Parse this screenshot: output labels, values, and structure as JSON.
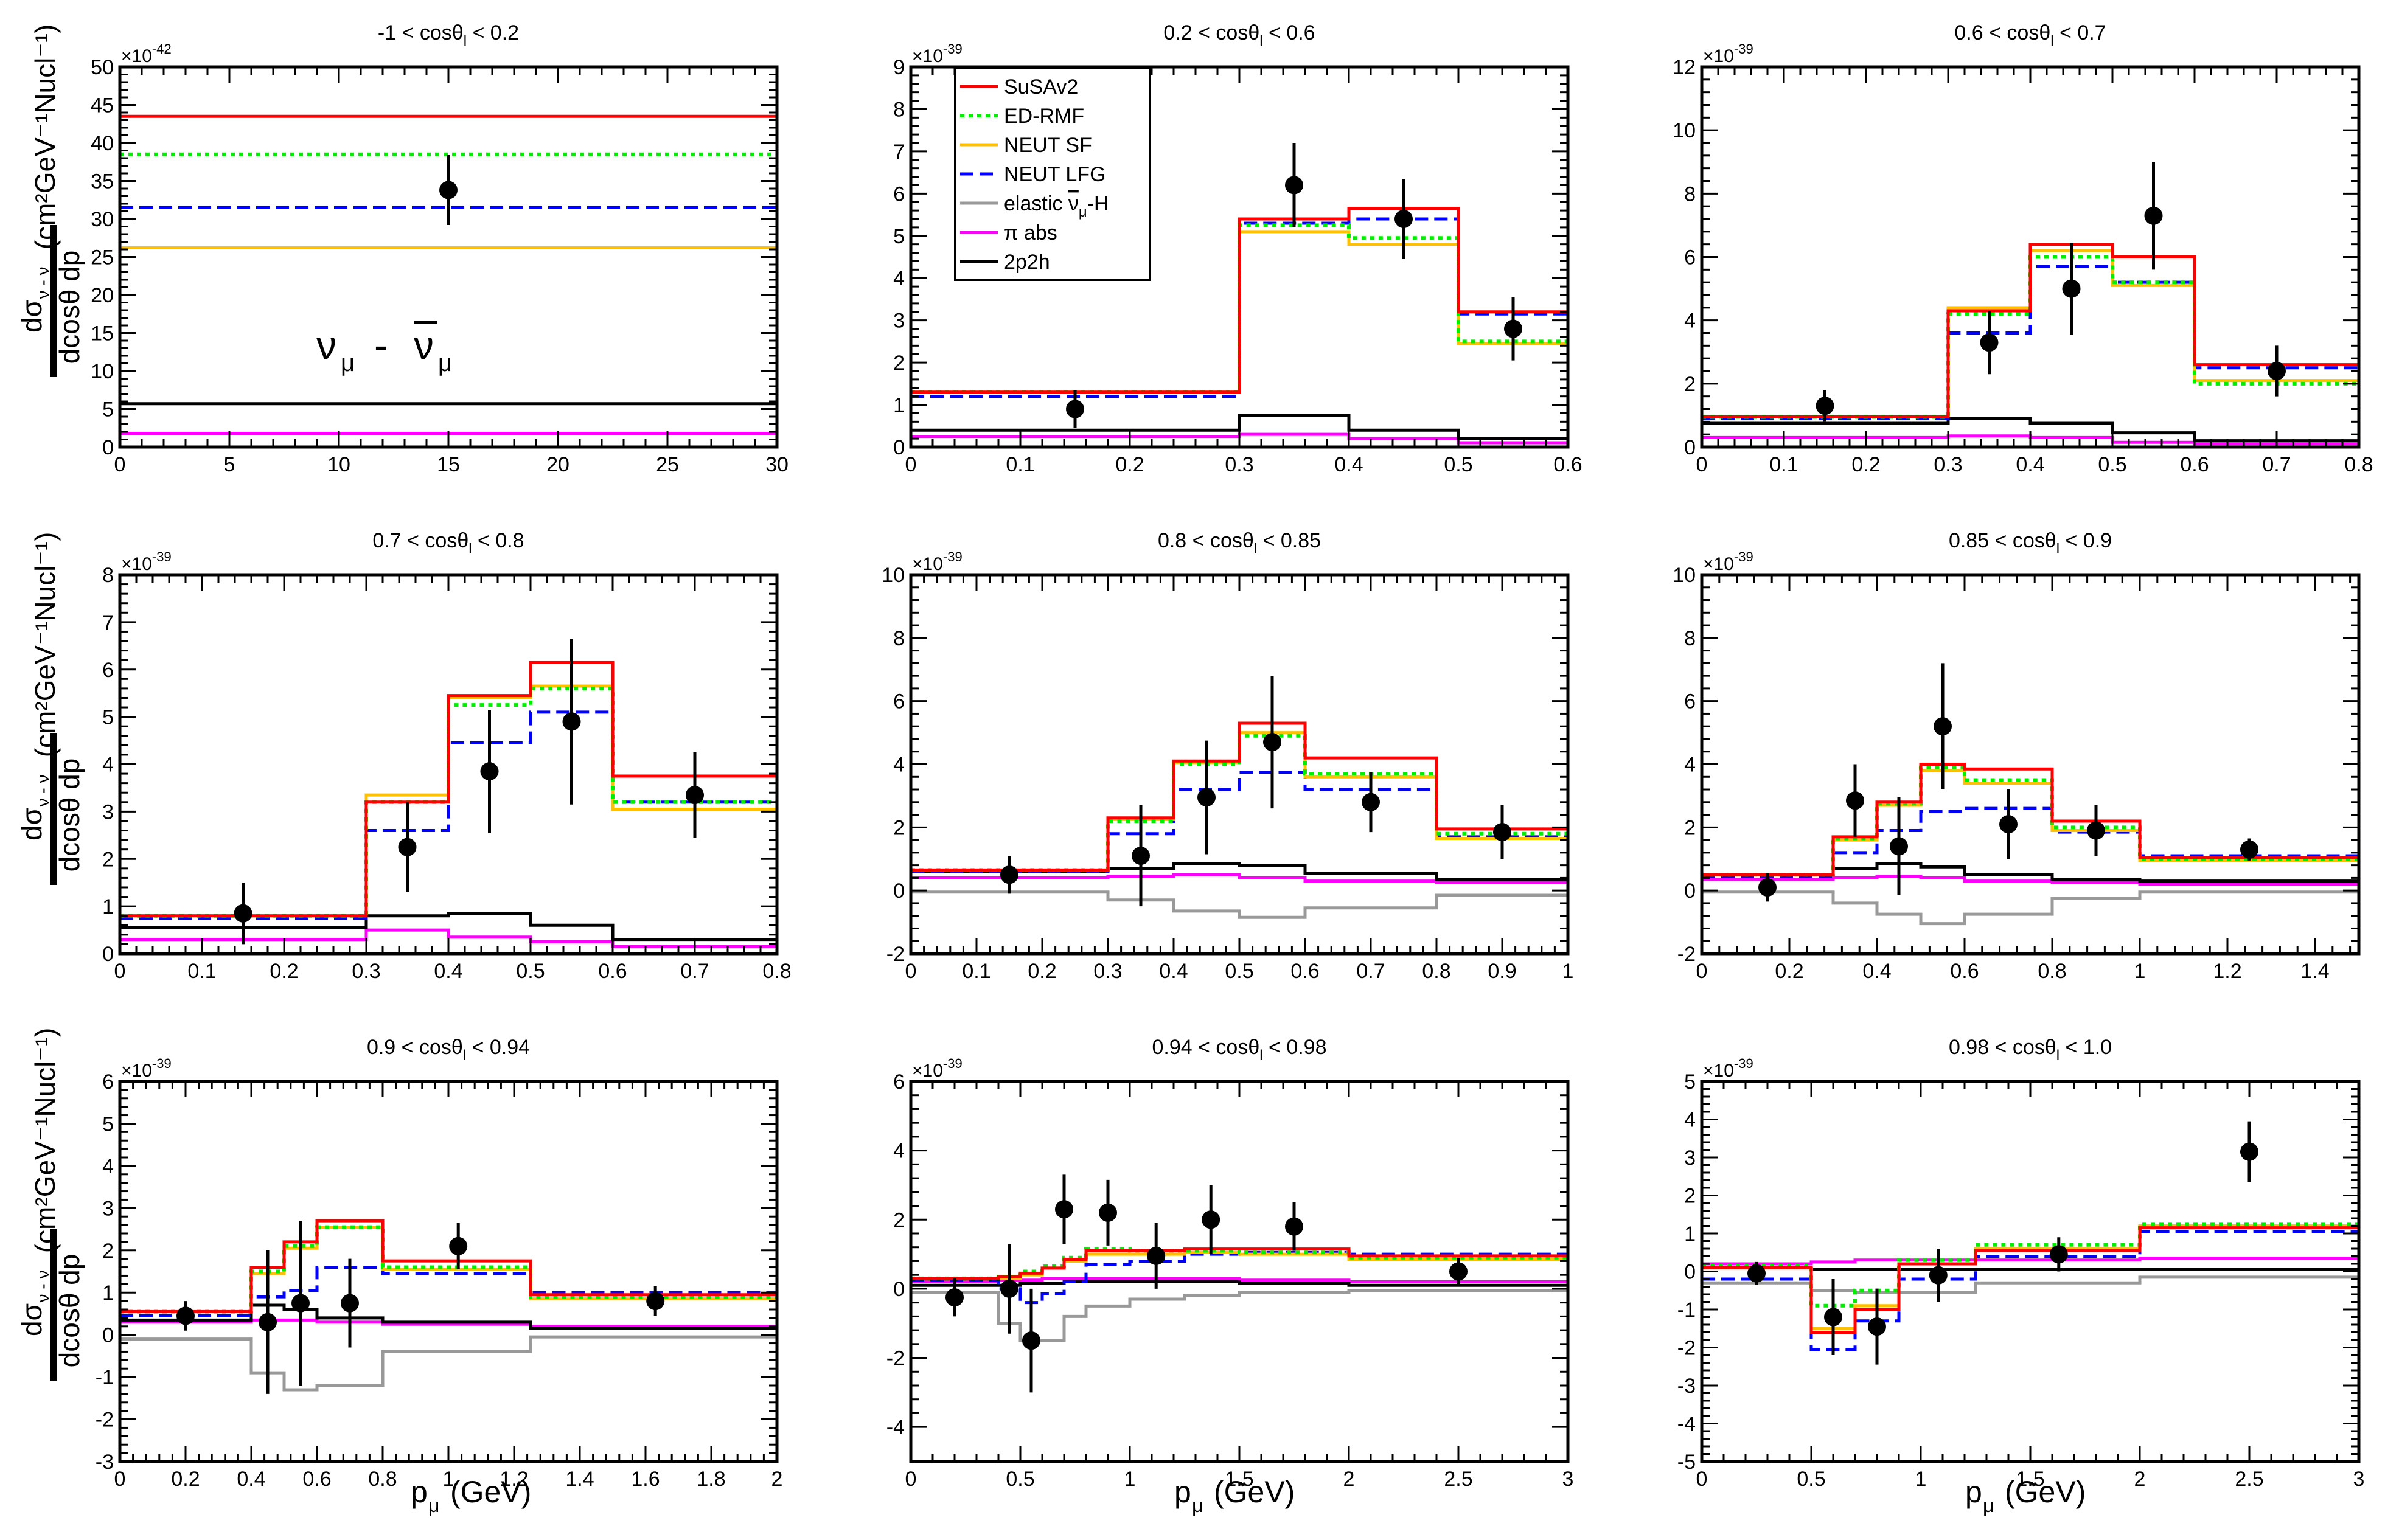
{
  "colors": {
    "SuSAv2": "#ff0000",
    "ED-RMF": "#00ee00",
    "NEUT SF": "#ffc000",
    "NEUT LFG": "#0000ff",
    "elastic": "#999999",
    "pi_abs": "#ff00ff",
    "2p2h": "#000000",
    "data": "#000000"
  },
  "labels": {
    "ylabel_main": "(cm²GeV⁻¹Nucl⁻¹)",
    "ylabel_frac_num": "dσ",
    "ylabel_frac_sub": "ν - ν",
    "ylabel_frac_den": "dcosθ dp",
    "ylabel_den_sub1": "l",
    "ylabel_den_sub2": "μ",
    "xlabel": "p",
    "xlabel_sub": "μ",
    "xlabel_unit": "(GeV)",
    "process_nu": "ν",
    "process_nu_sub": "μ",
    "process_dash": "-",
    "process_nubar": "ν",
    "process_nubar_sub": "μ"
  },
  "legend": [
    {
      "key": "SuSAv2",
      "label": "SuSAv2"
    },
    {
      "key": "ED-RMF",
      "label": "ED-RMF"
    },
    {
      "key": "NEUT SF",
      "label": "NEUT SF"
    },
    {
      "key": "NEUT LFG",
      "label": "NEUT LFG"
    },
    {
      "key": "elastic",
      "label": "elastic ν̄μ-H",
      "prefix": "elastic ",
      "nu": "ν",
      "sub": "μ",
      "suffix": "-H"
    },
    {
      "key": "pi_abs",
      "label": "π abs"
    },
    {
      "key": "2p2h",
      "label": "2p2h"
    }
  ],
  "chart_data": [
    {
      "type": "histogram",
      "title": "-1 < cosθl < 0.2",
      "title_pre": "-1 < cosθ",
      "title_sub": "l",
      "title_post": " < 0.2",
      "exponent": "×10⁻⁴²",
      "exp_base": "×10",
      "exp_pow": "-42",
      "xlim": [
        0,
        30
      ],
      "ylim": [
        0,
        50
      ],
      "xticks": [
        0,
        5,
        10,
        15,
        20,
        25,
        30
      ],
      "yticks": [
        0,
        5,
        10,
        15,
        20,
        25,
        30,
        35,
        40,
        45,
        50
      ],
      "edges": [
        0,
        30
      ],
      "series": {
        "SuSAv2": [
          43.5
        ],
        "ED-RMF": [
          38.5
        ],
        "NEUT SF": [
          26.2
        ],
        "NEUT LFG": [
          31.5
        ],
        "2p2h": [
          5.7
        ],
        "pi_abs": [
          1.8
        ]
      },
      "data": [
        {
          "x": 15,
          "y": 33.8,
          "yerr": 4.6
        }
      ]
    },
    {
      "type": "histogram",
      "title": "0.2 < cosθl < 0.6",
      "title_pre": "0.2 < cosθ",
      "title_sub": "l",
      "title_post": " < 0.6",
      "exponent": "×10⁻³⁹",
      "exp_base": "×10",
      "exp_pow": "-39",
      "xlim": [
        0,
        0.6
      ],
      "ylim": [
        0,
        9
      ],
      "xticks": [
        0,
        0.1,
        0.2,
        0.3,
        0.4,
        0.5,
        0.6
      ],
      "yticks": [
        0,
        1,
        2,
        3,
        4,
        5,
        6,
        7,
        8,
        9
      ],
      "edges": [
        0,
        0.3,
        0.4,
        0.5,
        0.6
      ],
      "series": {
        "SuSAv2": [
          1.3,
          5.4,
          5.65,
          3.2
        ],
        "ED-RMF": [
          1.3,
          5.25,
          4.95,
          2.5
        ],
        "NEUT SF": [
          1.3,
          5.1,
          4.8,
          2.45
        ],
        "NEUT LFG": [
          1.2,
          5.3,
          5.4,
          3.15
        ],
        "2p2h": [
          0.4,
          0.75,
          0.4,
          0.2
        ],
        "pi_abs": [
          0.25,
          0.3,
          0.2,
          0.1
        ]
      },
      "data": [
        {
          "x": 0.15,
          "y": 0.9,
          "yerr": 0.45
        },
        {
          "x": 0.35,
          "y": 6.2,
          "yerr": 1.0
        },
        {
          "x": 0.45,
          "y": 5.4,
          "yerr": 0.95
        },
        {
          "x": 0.55,
          "y": 2.8,
          "yerr": 0.75
        }
      ]
    },
    {
      "type": "histogram",
      "title": "0.6 < cosθl < 0.7",
      "title_pre": "0.6 < cosθ",
      "title_sub": "l",
      "title_post": " < 0.7",
      "exponent": "×10⁻³⁹",
      "exp_base": "×10",
      "exp_pow": "-39",
      "xlim": [
        0,
        0.8
      ],
      "ylim": [
        0,
        12
      ],
      "xticks": [
        0,
        0.1,
        0.2,
        0.3,
        0.4,
        0.5,
        0.6,
        0.7,
        0.8
      ],
      "yticks": [
        0,
        2,
        4,
        6,
        8,
        10,
        12
      ],
      "edges": [
        0,
        0.3,
        0.4,
        0.5,
        0.6,
        0.8
      ],
      "series": {
        "SuSAv2": [
          0.95,
          4.3,
          6.4,
          6.0,
          2.6
        ],
        "ED-RMF": [
          0.95,
          4.2,
          6.0,
          5.2,
          2.0
        ],
        "NEUT SF": [
          0.95,
          4.4,
          6.2,
          5.1,
          2.1
        ],
        "NEUT LFG": [
          0.9,
          3.6,
          5.7,
          5.2,
          2.5
        ],
        "2p2h": [
          0.75,
          0.9,
          0.75,
          0.45,
          0.2
        ],
        "pi_abs": [
          0.3,
          0.35,
          0.3,
          0.15,
          0.1
        ]
      },
      "data": [
        {
          "x": 0.15,
          "y": 1.3,
          "yerr": 0.5
        },
        {
          "x": 0.35,
          "y": 3.3,
          "yerr": 1.0
        },
        {
          "x": 0.45,
          "y": 5.0,
          "yerr": 1.45
        },
        {
          "x": 0.55,
          "y": 7.3,
          "yerr": 1.7
        },
        {
          "x": 0.7,
          "y": 2.4,
          "yerr": 0.8
        }
      ]
    },
    {
      "type": "histogram",
      "title": "0.7 < cosθl < 0.8",
      "title_pre": "0.7 < cosθ",
      "title_sub": "l",
      "title_post": " < 0.8",
      "exponent": "×10⁻³⁹",
      "exp_base": "×10",
      "exp_pow": "-39",
      "xlim": [
        0,
        0.8
      ],
      "ylim": [
        0,
        8
      ],
      "xticks": [
        0,
        0.1,
        0.2,
        0.3,
        0.4,
        0.5,
        0.6,
        0.7,
        0.8
      ],
      "yticks": [
        0,
        1,
        2,
        3,
        4,
        5,
        6,
        7,
        8
      ],
      "edges": [
        0,
        0.3,
        0.4,
        0.5,
        0.6,
        0.8
      ],
      "series": {
        "SuSAv2": [
          0.8,
          3.2,
          5.45,
          6.15,
          3.75
        ],
        "ED-RMF": [
          0.8,
          3.2,
          5.25,
          5.6,
          3.2
        ],
        "NEUT SF": [
          0.8,
          3.35,
          5.4,
          5.65,
          3.05
        ],
        "NEUT LFG": [
          0.75,
          2.6,
          4.45,
          5.1,
          3.2
        ],
        "2p2h": [
          0.55,
          0.8,
          0.85,
          0.6,
          0.3
        ],
        "pi_abs": [
          0.3,
          0.5,
          0.35,
          0.25,
          0.15
        ]
      },
      "data": [
        {
          "x": 0.15,
          "y": 0.85,
          "yerr": 0.65
        },
        {
          "x": 0.35,
          "y": 2.25,
          "yerr": 0.95
        },
        {
          "x": 0.45,
          "y": 3.85,
          "yerr": 1.3
        },
        {
          "x": 0.55,
          "y": 4.9,
          "yerr": 1.75
        },
        {
          "x": 0.7,
          "y": 3.35,
          "yerr": 0.9
        }
      ]
    },
    {
      "type": "histogram",
      "title": "0.8 < cosθl < 0.85",
      "title_pre": "0.8 < cosθ",
      "title_sub": "l",
      "title_post": " < 0.85",
      "exponent": "×10⁻³⁹",
      "exp_base": "×10",
      "exp_pow": "-39",
      "xlim": [
        0,
        1
      ],
      "ylim": [
        -2,
        10
      ],
      "xticks": [
        0,
        0.1,
        0.2,
        0.3,
        0.4,
        0.5,
        0.6,
        0.7,
        0.8,
        0.9,
        1
      ],
      "yticks": [
        -2,
        0,
        2,
        4,
        6,
        8,
        10
      ],
      "edges": [
        0,
        0.3,
        0.4,
        0.5,
        0.6,
        0.8,
        1.0
      ],
      "series": {
        "SuSAv2": [
          0.65,
          2.3,
          4.1,
          5.3,
          4.2,
          1.95
        ],
        "ED-RMF": [
          0.65,
          2.2,
          4.0,
          4.9,
          3.7,
          1.8
        ],
        "NEUT SF": [
          0.65,
          2.25,
          4.05,
          5.0,
          3.6,
          1.65
        ],
        "NEUT LFG": [
          0.6,
          1.8,
          3.2,
          3.75,
          3.2,
          1.7
        ],
        "2p2h": [
          0.6,
          0.7,
          0.85,
          0.8,
          0.55,
          0.35
        ],
        "pi_abs": [
          0.4,
          0.45,
          0.5,
          0.4,
          0.3,
          0.25
        ],
        "elastic": [
          -0.05,
          -0.3,
          -0.65,
          -0.85,
          -0.55,
          -0.15
        ]
      },
      "data": [
        {
          "x": 0.15,
          "y": 0.5,
          "yerr": 0.6
        },
        {
          "x": 0.35,
          "y": 1.1,
          "yerr": 1.6
        },
        {
          "x": 0.45,
          "y": 2.95,
          "yerr": 1.8
        },
        {
          "x": 0.55,
          "y": 4.7,
          "yerr": 2.1
        },
        {
          "x": 0.7,
          "y": 2.8,
          "yerr": 0.95
        },
        {
          "x": 0.9,
          "y": 1.85,
          "yerr": 0.85
        }
      ]
    },
    {
      "type": "histogram",
      "title": "0.85 < cosθl < 0.9",
      "title_pre": "0.85 < cosθ",
      "title_sub": "l",
      "title_post": " < 0.9",
      "exponent": "×10⁻³⁹",
      "exp_base": "×10",
      "exp_pow": "-39",
      "xlim": [
        0,
        1.5
      ],
      "ylim": [
        -2,
        10
      ],
      "xticks": [
        0,
        0.2,
        0.4,
        0.6,
        0.8,
        1,
        1.2,
        1.4
      ],
      "yticks": [
        -2,
        0,
        2,
        4,
        6,
        8,
        10
      ],
      "edges": [
        0,
        0.3,
        0.4,
        0.5,
        0.6,
        0.8,
        1.0,
        1.5
      ],
      "series": {
        "SuSAv2": [
          0.5,
          1.7,
          2.8,
          4.0,
          3.85,
          2.2,
          1.05
        ],
        "ED-RMF": [
          0.5,
          1.65,
          2.75,
          3.9,
          3.5,
          2.0,
          1.0
        ],
        "NEUT SF": [
          0.5,
          1.6,
          2.7,
          3.8,
          3.4,
          1.9,
          0.95
        ],
        "NEUT LFG": [
          0.45,
          1.2,
          1.9,
          2.5,
          2.6,
          1.85,
          1.1
        ],
        "2p2h": [
          0.5,
          0.7,
          0.85,
          0.75,
          0.5,
          0.35,
          0.3
        ],
        "pi_abs": [
          0.35,
          0.4,
          0.45,
          0.4,
          0.3,
          0.25,
          0.2
        ],
        "elastic": [
          -0.05,
          -0.4,
          -0.75,
          -1.05,
          -0.75,
          -0.25,
          -0.05
        ]
      },
      "data": [
        {
          "x": 0.15,
          "y": 0.1,
          "yerr": 0.45
        },
        {
          "x": 0.35,
          "y": 2.85,
          "yerr": 1.15
        },
        {
          "x": 0.45,
          "y": 1.4,
          "yerr": 1.55
        },
        {
          "x": 0.55,
          "y": 5.2,
          "yerr": 2.0
        },
        {
          "x": 0.7,
          "y": 2.1,
          "yerr": 1.1
        },
        {
          "x": 0.9,
          "y": 1.9,
          "yerr": 0.8
        },
        {
          "x": 1.25,
          "y": 1.3,
          "yerr": 0.35
        }
      ]
    },
    {
      "type": "histogram",
      "title": "0.9 < cosθl < 0.94",
      "title_pre": "0.9 < cosθ",
      "title_sub": "l",
      "title_post": " < 0.94",
      "exponent": "×10⁻³⁹",
      "exp_base": "×10",
      "exp_pow": "-39",
      "xlim": [
        0,
        2
      ],
      "ylim": [
        -3,
        6
      ],
      "xticks": [
        0,
        0.2,
        0.4,
        0.6,
        0.8,
        1,
        1.2,
        1.4,
        1.6,
        1.8,
        2
      ],
      "yticks": [
        -3,
        -2,
        -1,
        0,
        1,
        2,
        3,
        4,
        5,
        6
      ],
      "edges": [
        0,
        0.4,
        0.5,
        0.6,
        0.8,
        1.25,
        2.0
      ],
      "series": {
        "SuSAv2": [
          0.55,
          1.6,
          2.2,
          2.7,
          1.75,
          0.95
        ],
        "ED-RMF": [
          0.55,
          1.5,
          2.1,
          2.55,
          1.6,
          0.9
        ],
        "NEUT SF": [
          0.55,
          1.45,
          2.05,
          2.55,
          1.55,
          0.85
        ],
        "NEUT LFG": [
          0.45,
          0.9,
          1.05,
          1.6,
          1.45,
          1.0
        ],
        "2p2h": [
          0.35,
          0.7,
          0.6,
          0.4,
          0.3,
          0.15
        ],
        "pi_abs": [
          0.3,
          0.35,
          0.35,
          0.3,
          0.25,
          0.2
        ],
        "elastic": [
          -0.1,
          -0.9,
          -1.3,
          -1.2,
          -0.4,
          -0.05
        ]
      },
      "data": [
        {
          "x": 0.2,
          "y": 0.45,
          "yerr": 0.35
        },
        {
          "x": 0.45,
          "y": 0.3,
          "yerr": 1.7
        },
        {
          "x": 0.55,
          "y": 0.75,
          "yerr": 1.95
        },
        {
          "x": 0.7,
          "y": 0.75,
          "yerr": 1.05
        },
        {
          "x": 1.03,
          "y": 2.1,
          "yerr": 0.55
        },
        {
          "x": 1.63,
          "y": 0.8,
          "yerr": 0.35
        }
      ]
    },
    {
      "type": "histogram",
      "title": "0.94 < cosθl < 0.98",
      "title_pre": "0.94 < cosθ",
      "title_sub": "l",
      "title_post": " < 0.98",
      "exponent": "×10⁻³⁹",
      "exp_base": "×10",
      "exp_pow": "-39",
      "xlim": [
        0,
        3
      ],
      "ylim": [
        -5,
        6
      ],
      "xticks": [
        0,
        0.5,
        1,
        1.5,
        2,
        2.5,
        3
      ],
      "yticks": [
        -4,
        -2,
        0,
        2,
        4,
        6
      ],
      "edges": [
        0,
        0.4,
        0.5,
        0.6,
        0.7,
        0.8,
        1.0,
        1.25,
        1.5,
        2.0,
        3.0
      ],
      "series": {
        "SuSAv2": [
          0.3,
          0.35,
          0.45,
          0.6,
          0.85,
          1.1,
          1.1,
          1.15,
          1.15,
          0.95
        ],
        "ED-RMF": [
          0.3,
          0.35,
          0.5,
          0.65,
          0.9,
          1.15,
          1.1,
          1.1,
          1.05,
          0.9
        ],
        "NEUT SF": [
          0.3,
          0.3,
          0.4,
          0.6,
          0.8,
          1.0,
          1.0,
          1.05,
          1.0,
          0.85
        ],
        "NEUT LFG": [
          0.25,
          0.0,
          -0.4,
          -0.15,
          0.2,
          0.7,
          0.8,
          1.0,
          1.05,
          1.0
        ],
        "2p2h": [
          0.1,
          0.1,
          0.15,
          0.15,
          0.2,
          0.2,
          0.2,
          0.2,
          0.15,
          0.1
        ],
        "pi_abs": [
          0.2,
          0.25,
          0.25,
          0.3,
          0.3,
          0.3,
          0.3,
          0.3,
          0.25,
          0.2
        ],
        "elastic": [
          -0.1,
          -1.0,
          -1.5,
          -1.5,
          -0.8,
          -0.5,
          -0.3,
          -0.2,
          -0.1,
          -0.05
        ]
      },
      "data": [
        {
          "x": 0.2,
          "y": -0.25,
          "yerr": 0.55
        },
        {
          "x": 0.45,
          "y": 0.0,
          "yerr": 1.3
        },
        {
          "x": 0.55,
          "y": -1.5,
          "yerr": 1.5
        },
        {
          "x": 0.7,
          "y": 2.3,
          "yerr": 1.0
        },
        {
          "x": 0.9,
          "y": 2.2,
          "yerr": 0.95
        },
        {
          "x": 1.12,
          "y": 0.95,
          "yerr": 0.95
        },
        {
          "x": 1.37,
          "y": 2.0,
          "yerr": 1.0
        },
        {
          "x": 1.75,
          "y": 1.8,
          "yerr": 0.7
        },
        {
          "x": 2.5,
          "y": 0.5,
          "yerr": 0.4
        }
      ]
    },
    {
      "type": "histogram",
      "title": "0.98 < cosθl < 1.0",
      "title_pre": "0.98 < cosθ",
      "title_sub": "l",
      "title_post": " < 1.0",
      "exponent": "×10⁻³⁹",
      "exp_base": "×10",
      "exp_pow": "-39",
      "xlim": [
        0,
        3
      ],
      "ylim": [
        -5,
        5
      ],
      "xticks": [
        0,
        0.5,
        1,
        1.5,
        2,
        2.5,
        3
      ],
      "yticks": [
        -5,
        -4,
        -3,
        -2,
        -1,
        0,
        1,
        2,
        3,
        4,
        5
      ],
      "edges": [
        0,
        0.5,
        0.7,
        0.9,
        1.25,
        2.0,
        3.0
      ],
      "series": {
        "SuSAv2": [
          0.1,
          -1.6,
          -1.0,
          0.2,
          0.55,
          1.15
        ],
        "ED-RMF": [
          0.15,
          -0.9,
          -0.5,
          0.3,
          0.7,
          1.25
        ],
        "NEUT SF": [
          0.1,
          -1.5,
          -0.9,
          0.2,
          0.6,
          1.2
        ],
        "NEUT LFG": [
          -0.2,
          -2.05,
          -1.3,
          -0.2,
          0.4,
          1.05
        ],
        "2p2h": [
          0.1,
          0.05,
          0.05,
          0.05,
          0.05,
          0.05
        ],
        "pi_abs": [
          0.2,
          0.25,
          0.3,
          0.3,
          0.3,
          0.35
        ],
        "elastic": [
          -0.3,
          -0.5,
          -0.55,
          -0.55,
          -0.3,
          -0.15
        ]
      },
      "data": [
        {
          "x": 0.25,
          "y": -0.05,
          "yerr": 0.3
        },
        {
          "x": 0.6,
          "y": -1.2,
          "yerr": 1.0
        },
        {
          "x": 0.8,
          "y": -1.45,
          "yerr": 1.0
        },
        {
          "x": 1.08,
          "y": -0.1,
          "yerr": 0.7
        },
        {
          "x": 1.63,
          "y": 0.45,
          "yerr": 0.45
        },
        {
          "x": 2.5,
          "y": 3.15,
          "yerr": 0.8
        }
      ]
    }
  ]
}
